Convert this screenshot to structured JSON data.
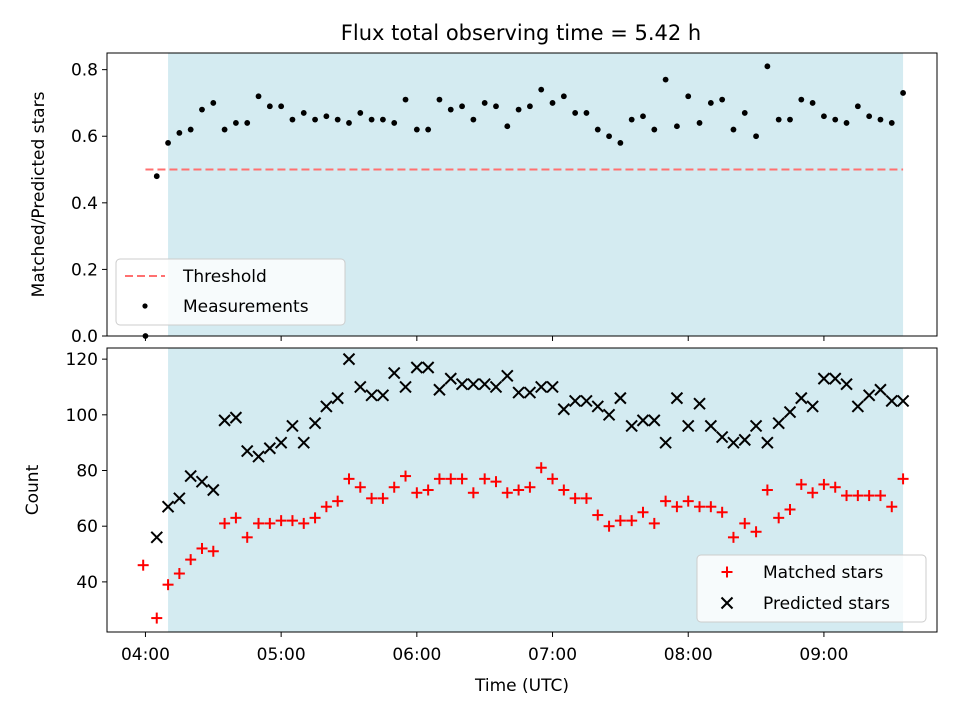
{
  "title": "Flux total observing time = 5.42 h",
  "colors": {
    "shade": "#d4ebf1",
    "threshold": "#ff7070",
    "matched": "#ff0000",
    "predicted": "#000000",
    "measure": "#000000"
  },
  "chart_data": [
    {
      "type": "scatter",
      "ylabel": "Matched/Predicted stars",
      "ylim": [
        0,
        0.85
      ],
      "yticks": [
        "0.0",
        "0.2",
        "0.4",
        "0.6",
        "0.8"
      ],
      "xlim": [
        "03:43",
        "09:50"
      ],
      "shaded_span": [
        "04:10",
        "09:35"
      ],
      "threshold": {
        "value": 0.5,
        "from": "04:00",
        "to": "09:35",
        "label": "Threshold"
      },
      "legend": {
        "position": "lower-left",
        "entries": [
          "Threshold",
          "Measurements"
        ]
      },
      "series": [
        {
          "name": "Measurements",
          "x": [
            "04:00",
            "04:05",
            "04:10",
            "04:15",
            "04:20",
            "04:25",
            "04:30",
            "04:35",
            "04:40",
            "04:45",
            "04:50",
            "04:55",
            "05:00",
            "05:05",
            "05:10",
            "05:15",
            "05:20",
            "05:25",
            "05:30",
            "05:35",
            "05:40",
            "05:45",
            "05:50",
            "05:55",
            "06:00",
            "06:05",
            "06:10",
            "06:15",
            "06:20",
            "06:25",
            "06:30",
            "06:35",
            "06:40",
            "06:45",
            "06:50",
            "06:55",
            "07:00",
            "07:05",
            "07:10",
            "07:15",
            "07:20",
            "07:25",
            "07:30",
            "07:35",
            "07:40",
            "07:45",
            "07:50",
            "07:55",
            "08:00",
            "08:05",
            "08:10",
            "08:15",
            "08:20",
            "08:25",
            "08:30",
            "08:35",
            "08:40",
            "08:45",
            "08:50",
            "08:55",
            "09:00",
            "09:05",
            "09:10",
            "09:15",
            "09:20",
            "09:25",
            "09:30",
            "09:35"
          ],
          "values": [
            0.0,
            0.48,
            0.58,
            0.61,
            0.62,
            0.68,
            0.7,
            0.62,
            0.64,
            0.64,
            0.72,
            0.69,
            0.69,
            0.65,
            0.67,
            0.65,
            0.66,
            0.65,
            0.64,
            0.67,
            0.65,
            0.65,
            0.64,
            0.71,
            0.62,
            0.62,
            0.71,
            0.68,
            0.69,
            0.65,
            0.7,
            0.69,
            0.63,
            0.68,
            0.69,
            0.74,
            0.7,
            0.72,
            0.67,
            0.67,
            0.62,
            0.6,
            0.58,
            0.65,
            0.66,
            0.62,
            0.77,
            0.63,
            0.72,
            0.64,
            0.7,
            0.71,
            0.62,
            0.67,
            0.6,
            0.81,
            0.65,
            0.65,
            0.71,
            0.7,
            0.66,
            0.65,
            0.64,
            0.69,
            0.66,
            0.65,
            0.64,
            0.73
          ]
        }
      ]
    },
    {
      "type": "scatter",
      "ylabel": "Count",
      "xlabel": "Time (UTC)",
      "ylim": [
        22,
        124
      ],
      "yticks": [
        "40",
        "60",
        "80",
        "100",
        "120"
      ],
      "xlim": [
        "03:43",
        "09:50"
      ],
      "xticks": [
        "04:00",
        "05:00",
        "06:00",
        "07:00",
        "08:00",
        "09:00"
      ],
      "shaded_span": [
        "04:10",
        "09:35"
      ],
      "legend": {
        "position": "lower-right",
        "entries": [
          "Matched stars",
          "Predicted stars"
        ]
      },
      "series": [
        {
          "name": "Matched stars",
          "marker": "plus",
          "x": [
            "03:59",
            "04:05",
            "04:10",
            "04:15",
            "04:20",
            "04:25",
            "04:30",
            "04:35",
            "04:40",
            "04:45",
            "04:50",
            "04:55",
            "05:00",
            "05:05",
            "05:10",
            "05:15",
            "05:20",
            "05:25",
            "05:30",
            "05:35",
            "05:40",
            "05:45",
            "05:50",
            "05:55",
            "06:00",
            "06:05",
            "06:10",
            "06:15",
            "06:20",
            "06:25",
            "06:30",
            "06:35",
            "06:40",
            "06:45",
            "06:50",
            "06:55",
            "07:00",
            "07:05",
            "07:10",
            "07:15",
            "07:20",
            "07:25",
            "07:30",
            "07:35",
            "07:40",
            "07:45",
            "07:50",
            "07:55",
            "08:00",
            "08:05",
            "08:10",
            "08:15",
            "08:20",
            "08:25",
            "08:30",
            "08:35",
            "08:40",
            "08:45",
            "08:50",
            "08:55",
            "09:00",
            "09:05",
            "09:10",
            "09:15",
            "09:20",
            "09:25",
            "09:30",
            "09:35"
          ],
          "values": [
            46,
            27,
            39,
            43,
            48,
            52,
            51,
            61,
            63,
            56,
            61,
            61,
            62,
            62,
            61,
            63,
            67,
            69,
            77,
            74,
            70,
            70,
            74,
            78,
            72,
            73,
            77,
            77,
            77,
            72,
            77,
            76,
            72,
            73,
            74,
            81,
            77,
            73,
            70,
            70,
            64,
            60,
            62,
            62,
            65,
            61,
            69,
            67,
            69,
            67,
            67,
            65,
            56,
            61,
            58,
            73,
            63,
            66,
            75,
            72,
            75,
            74,
            71,
            71,
            71,
            71,
            67,
            77
          ]
        },
        {
          "name": "Predicted stars",
          "marker": "x",
          "x": [
            "04:05",
            "04:10",
            "04:15",
            "04:20",
            "04:25",
            "04:30",
            "04:35",
            "04:40",
            "04:45",
            "04:50",
            "04:55",
            "05:00",
            "05:05",
            "05:10",
            "05:15",
            "05:20",
            "05:25",
            "05:30",
            "05:35",
            "05:40",
            "05:45",
            "05:50",
            "05:55",
            "06:00",
            "06:05",
            "06:10",
            "06:15",
            "06:20",
            "06:25",
            "06:30",
            "06:35",
            "06:40",
            "06:45",
            "06:50",
            "06:55",
            "07:00",
            "07:05",
            "07:10",
            "07:15",
            "07:20",
            "07:25",
            "07:30",
            "07:35",
            "07:40",
            "07:45",
            "07:50",
            "07:55",
            "08:00",
            "08:05",
            "08:10",
            "08:15",
            "08:20",
            "08:25",
            "08:30",
            "08:35",
            "08:40",
            "08:45",
            "08:50",
            "08:55",
            "09:00",
            "09:05",
            "09:10",
            "09:15",
            "09:20",
            "09:25",
            "09:30",
            "09:35"
          ],
          "values": [
            56,
            67,
            70,
            78,
            76,
            73,
            98,
            99,
            87,
            85,
            88,
            90,
            96,
            90,
            97,
            103,
            106,
            120,
            110,
            107,
            107,
            115,
            110,
            117,
            117,
            109,
            113,
            111,
            111,
            111,
            110,
            114,
            108,
            108,
            110,
            110,
            102,
            105,
            105,
            103,
            100,
            106,
            96,
            98,
            98,
            90,
            106,
            96,
            104,
            96,
            92,
            90,
            91,
            96,
            90,
            97,
            101,
            106,
            103,
            113,
            113,
            111,
            103,
            107,
            109,
            105,
            105
          ]
        }
      ]
    }
  ]
}
